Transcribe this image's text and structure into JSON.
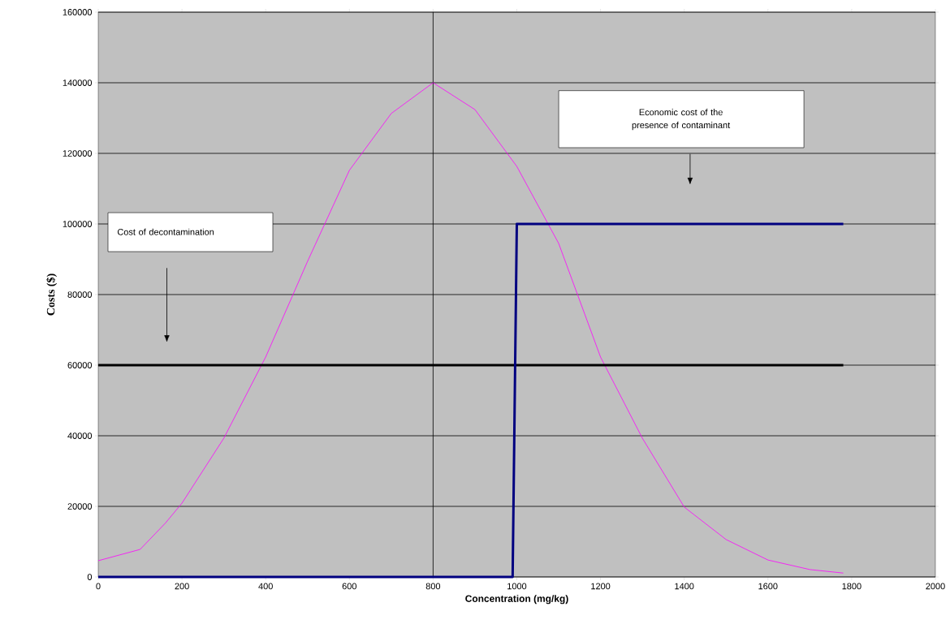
{
  "chart_data": {
    "type": "line",
    "xlabel": "Concentration (mg/kg)",
    "ylabel": "Costs ($)",
    "xlim": [
      0,
      2000
    ],
    "ylim": [
      0,
      160000
    ],
    "xticks": [
      0,
      200,
      400,
      600,
      800,
      1000,
      1200,
      1400,
      1600,
      1800,
      2000
    ],
    "yticks": [
      0,
      20000,
      40000,
      60000,
      80000,
      100000,
      120000,
      140000,
      160000
    ],
    "grid": "y",
    "marker": "none",
    "ref_lines": [
      {
        "axis": "x",
        "value": 800,
        "color": "#000000"
      }
    ],
    "annotations": [
      "Cost of decontamination",
      "Economic cost of the presence of contaminant"
    ],
    "series": [
      {
        "color": "#ff00ff",
        "x": [
          0,
          100,
          160,
          200,
          300,
          400,
          500,
          600,
          700,
          800,
          900,
          1000,
          1100,
          1200,
          1300,
          1400,
          1500,
          1600,
          1700,
          1780
        ],
        "values": [
          4600,
          7800,
          15200,
          20900,
          39300,
          62300,
          89400,
          115200,
          131300,
          140000,
          132400,
          116300,
          94500,
          62300,
          39300,
          19800,
          10600,
          4800,
          2100,
          1100
        ]
      },
      {
        "color": "#000000",
        "x": [
          0,
          1780
        ],
        "values": [
          60000,
          60000
        ]
      },
      {
        "color": "#000080",
        "x": [
          0,
          990,
          1000,
          1780
        ],
        "values": [
          0,
          0,
          100000,
          100000
        ]
      }
    ]
  }
}
